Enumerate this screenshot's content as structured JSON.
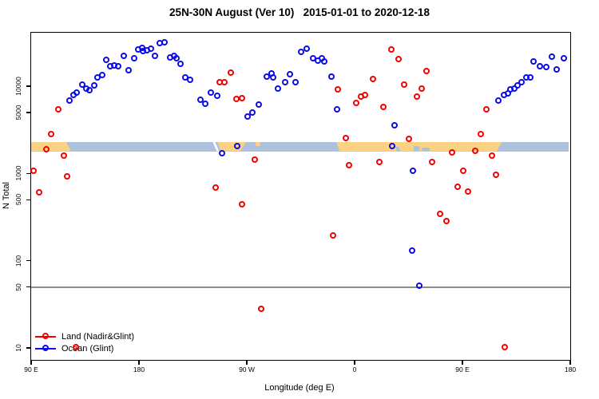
{
  "title": "25N-30N August (Ver 10)   2015-01-01 to 2020-12-18",
  "x_axis": {
    "title": "Longitude (deg E)",
    "ticks": [
      {
        "deg": 90,
        "label": "90 E"
      },
      {
        "deg": 180,
        "label": "180"
      },
      {
        "deg": 270,
        "label": "90 W"
      },
      {
        "deg": 360,
        "label": "0"
      },
      {
        "deg": 450,
        "label": "90 E"
      },
      {
        "deg": 540,
        "label": "180"
      }
    ]
  },
  "y_axis": {
    "title": "N Total",
    "ticks": [
      10,
      50,
      100,
      500,
      1000,
      5000,
      10000
    ]
  },
  "reference_line": {
    "value": 50,
    "color": "#8C8C8C"
  },
  "legend": {
    "items": [
      {
        "label": "Land (Nadir&Glint)",
        "color": "#F50000"
      },
      {
        "label": "Ocean (Glint)",
        "color": "#0B0BE8"
      }
    ]
  },
  "map_band": {
    "n_center": 2000,
    "colors": {
      "land": "#FBD283",
      "ocean": "#ACC1DC",
      "gap": "#FFFFFF"
    },
    "base": {
      "from": 90,
      "to": 538.7
    },
    "segments": [
      {
        "kind": "land",
        "from": 90,
        "to": 119.3,
        "sr": 6
      },
      {
        "kind": "land",
        "from": 245.3,
        "to": 269.3,
        "sl": 5,
        "sr": -7
      },
      {
        "kind": "land",
        "from": 277.5,
        "to": 281.2,
        "frac": 0.45,
        "anchor": "top"
      },
      {
        "kind": "land",
        "from": 344.7,
        "to": 482.7,
        "sl": 4,
        "sr": -6
      },
      {
        "kind": "gap",
        "from": 241.6,
        "to": 243.6,
        "sl": 5,
        "sr": 5
      },
      {
        "kind": "ocean",
        "from": 394,
        "to": 396.7,
        "frac": 0.5,
        "anchor": "bottom",
        "sl": 2,
        "sr": 2
      },
      {
        "kind": "ocean",
        "from": 409.3,
        "to": 414.3,
        "frac": 0.55,
        "anchor": "bottom"
      },
      {
        "kind": "ocean",
        "from": 416.3,
        "to": 422.7,
        "frac": 0.4,
        "anchor": "bottom"
      }
    ]
  },
  "chart_data": {
    "type": "scatter",
    "title": "25N-30N August (Ver 10)   2015-01-01 to 2020-12-18",
    "xlabel": "Longitude (deg E)",
    "ylabel": "N Total",
    "x_axis_note": "axis spans 450 degrees eastward starting at 90E (90E,180,90W,0,90E,180)",
    "xlim": [
      90,
      540
    ],
    "ylim": [
      7.3,
      41000
    ],
    "log_y": true,
    "grid": false,
    "legend_position": "bottom-left",
    "series": [
      {
        "name": "Land (Nadir&Glint)",
        "color": "#F50000",
        "points": [
          [
            113.3,
            5330
          ],
          [
            107.3,
            2770
          ],
          [
            103.3,
            1860
          ],
          [
            118,
            1570
          ],
          [
            92.7,
            1070
          ],
          [
            120.7,
            910
          ],
          [
            97.3,
            595
          ],
          [
            128,
            10
          ],
          [
            257.3,
            14000
          ],
          [
            248,
            10900
          ],
          [
            252,
            10900
          ],
          [
            262,
            7000
          ],
          [
            266.7,
            7160
          ],
          [
            277.3,
            1410
          ],
          [
            342.7,
            191
          ],
          [
            282.7,
            28
          ],
          [
            244.7,
            676
          ],
          [
            266.7,
            434
          ],
          [
            346.7,
            9020
          ],
          [
            353.3,
            2500
          ],
          [
            356,
            1220
          ],
          [
            362,
            6310
          ],
          [
            366,
            7460
          ],
          [
            369.3,
            7780
          ],
          [
            376,
            11900
          ],
          [
            381.3,
            1330
          ],
          [
            384.7,
            5680
          ],
          [
            391.3,
            25900
          ],
          [
            397.3,
            20000
          ],
          [
            402,
            10200
          ],
          [
            406,
            2440
          ],
          [
            412.7,
            7460
          ],
          [
            416.7,
            9200
          ],
          [
            420.7,
            14700
          ],
          [
            425.3,
            1330
          ],
          [
            432,
            337
          ],
          [
            437.3,
            279
          ],
          [
            442,
            1710
          ],
          [
            446.7,
            690
          ],
          [
            451.3,
            1070
          ],
          [
            455.3,
            608
          ],
          [
            461.3,
            1780
          ],
          [
            466,
            2770
          ],
          [
            470.7,
            5330
          ],
          [
            475.3,
            1570
          ],
          [
            478.7,
            950
          ],
          [
            486,
            10
          ]
        ]
      },
      {
        "name": "Ocean (Glint)",
        "color": "#0B0BE8",
        "points": [
          [
            122.7,
            6710
          ],
          [
            126,
            7780
          ],
          [
            128.7,
            8300
          ],
          [
            133.3,
            10200
          ],
          [
            136.7,
            9230
          ],
          [
            139.3,
            8840
          ],
          [
            143.3,
            10000
          ],
          [
            146,
            12400
          ],
          [
            150,
            13200
          ],
          [
            153.3,
            19700
          ],
          [
            156.7,
            16600
          ],
          [
            160,
            17000
          ],
          [
            163.3,
            16600
          ],
          [
            168,
            21900
          ],
          [
            172,
            15000
          ],
          [
            176.7,
            20500
          ],
          [
            180,
            25900
          ],
          [
            183.3,
            27000
          ],
          [
            184,
            24800
          ],
          [
            187.3,
            25300
          ],
          [
            190.7,
            26400
          ],
          [
            194,
            21900
          ],
          [
            198,
            30600
          ],
          [
            202,
            31300
          ],
          [
            206.7,
            20900
          ],
          [
            210,
            21900
          ],
          [
            212,
            20500
          ],
          [
            215.3,
            17700
          ],
          [
            219.3,
            12400
          ],
          [
            223.3,
            11600
          ],
          [
            232,
            6860
          ],
          [
            236,
            6170
          ],
          [
            240.7,
            8300
          ],
          [
            246,
            7620
          ],
          [
            250,
            1670
          ],
          [
            262.7,
            2020
          ],
          [
            271.3,
            4410
          ],
          [
            275.3,
            4900
          ],
          [
            280.7,
            6040
          ],
          [
            287.3,
            12600
          ],
          [
            291.3,
            13700
          ],
          [
            292.7,
            12400
          ],
          [
            296.7,
            9200
          ],
          [
            302.7,
            10900
          ],
          [
            306.7,
            13500
          ],
          [
            311.3,
            10900
          ],
          [
            316,
            24300
          ],
          [
            320.7,
            26400
          ],
          [
            326,
            20500
          ],
          [
            330,
            19300
          ],
          [
            333.3,
            20500
          ],
          [
            335.3,
            18900
          ],
          [
            341.3,
            12600
          ],
          [
            346,
            5330
          ],
          [
            392,
            2020
          ],
          [
            394,
            3490
          ],
          [
            408.7,
            128
          ],
          [
            409.3,
            1070
          ],
          [
            414.7,
            51
          ],
          [
            480.7,
            6710
          ],
          [
            485.3,
            7780
          ],
          [
            488.7,
            8110
          ],
          [
            490.7,
            9020
          ],
          [
            494,
            9210
          ],
          [
            496.7,
            10000
          ],
          [
            500,
            10900
          ],
          [
            504,
            12400
          ],
          [
            507.3,
            12400
          ],
          [
            510,
            18900
          ],
          [
            515.3,
            16600
          ],
          [
            520.7,
            16300
          ],
          [
            525.3,
            21400
          ],
          [
            529.3,
            15300
          ],
          [
            535.3,
            20500
          ]
        ]
      }
    ]
  }
}
